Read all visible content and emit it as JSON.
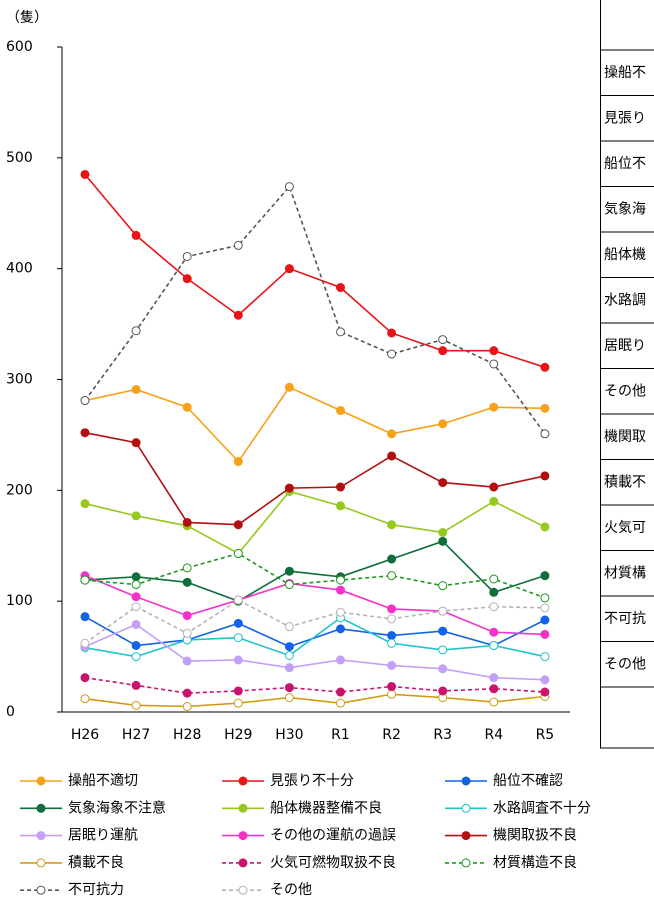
{
  "chart_data": {
    "type": "line",
    "unit_label": "（隻）",
    "categories": [
      "H26",
      "H27",
      "H28",
      "H29",
      "H30",
      "R1",
      "R2",
      "R3",
      "R4",
      "R5"
    ],
    "ylim": [
      0,
      600
    ],
    "yticks": [
      0,
      100,
      200,
      300,
      400,
      500,
      600
    ],
    "grid": false,
    "series": [
      {
        "name": "操船不適切",
        "color": "#f7a11a",
        "dash": false,
        "marker": "filled",
        "values": [
          281,
          291,
          275,
          226,
          293,
          272,
          251,
          260,
          275,
          274
        ]
      },
      {
        "name": "見張り不十分",
        "color": "#e8141a",
        "dash": false,
        "marker": "filled",
        "values": [
          485,
          430,
          391,
          358,
          400,
          383,
          342,
          326,
          326,
          311
        ]
      },
      {
        "name": "船位不確認",
        "color": "#1463e6",
        "dash": false,
        "marker": "filled",
        "values": [
          86,
          60,
          65,
          80,
          59,
          75,
          69,
          73,
          60,
          83
        ]
      },
      {
        "name": "気象海象不注意",
        "color": "#0f6e3c",
        "dash": false,
        "marker": "filled",
        "values": [
          119,
          122,
          117,
          100,
          127,
          122,
          138,
          154,
          108,
          123
        ]
      },
      {
        "name": "船体機器整備不良",
        "color": "#96c81e",
        "dash": false,
        "marker": "filled",
        "values": [
          188,
          177,
          168,
          143,
          199,
          186,
          169,
          162,
          190,
          167
        ]
      },
      {
        "name": "水路調査不十分",
        "color": "#1ec3c8",
        "dash": false,
        "marker": "hollow",
        "values": [
          58,
          50,
          65,
          67,
          51,
          85,
          62,
          56,
          60,
          50
        ]
      },
      {
        "name": "居眠り運航",
        "color": "#c3a0f5",
        "dash": false,
        "marker": "filled",
        "values": [
          59,
          79,
          46,
          47,
          40,
          47,
          42,
          39,
          31,
          29
        ]
      },
      {
        "name": "その他の運航の過誤",
        "color": "#f532c8",
        "dash": false,
        "marker": "filled",
        "values": [
          123,
          104,
          87,
          101,
          116,
          110,
          93,
          91,
          72,
          70
        ]
      },
      {
        "name": "機関取扱不良",
        "color": "#b40f0f",
        "dash": false,
        "marker": "filled",
        "values": [
          252,
          243,
          171,
          169,
          202,
          203,
          231,
          207,
          203,
          213
        ]
      },
      {
        "name": "積載不良",
        "color": "#d29b14",
        "dash": false,
        "marker": "hollow",
        "values": [
          12,
          6,
          5,
          8,
          13,
          8,
          16,
          13,
          9,
          14
        ]
      },
      {
        "name": "火気可燃物取扱不良",
        "color": "#c8146e",
        "dash": true,
        "marker": "filled",
        "values": [
          31,
          24,
          17,
          19,
          22,
          18,
          23,
          19,
          21,
          18
        ]
      },
      {
        "name": "材質構造不良",
        "color": "#1e961e",
        "dash": true,
        "marker": "hollow",
        "values": [
          119,
          115,
          130,
          143,
          115,
          119,
          123,
          114,
          120,
          103
        ]
      },
      {
        "name": "不可抗力",
        "color": "#555555",
        "dash": true,
        "marker": "hollow",
        "values": [
          281,
          344,
          411,
          421,
          474,
          343,
          323,
          336,
          314,
          251
        ]
      },
      {
        "name": "その他",
        "color": "#b4b4b4",
        "dash": true,
        "marker": "hollow",
        "values": [
          62,
          95,
          71,
          101,
          77,
          90,
          84,
          91,
          95,
          94
        ]
      }
    ]
  },
  "table": {
    "rows": [
      "操船不",
      "見張り",
      "船位不",
      "気象海",
      "船体機",
      "水路調",
      "居眠り",
      "その他",
      "機関取",
      "積載不",
      "火気可",
      "材質構",
      "不可抗",
      "その他"
    ]
  }
}
